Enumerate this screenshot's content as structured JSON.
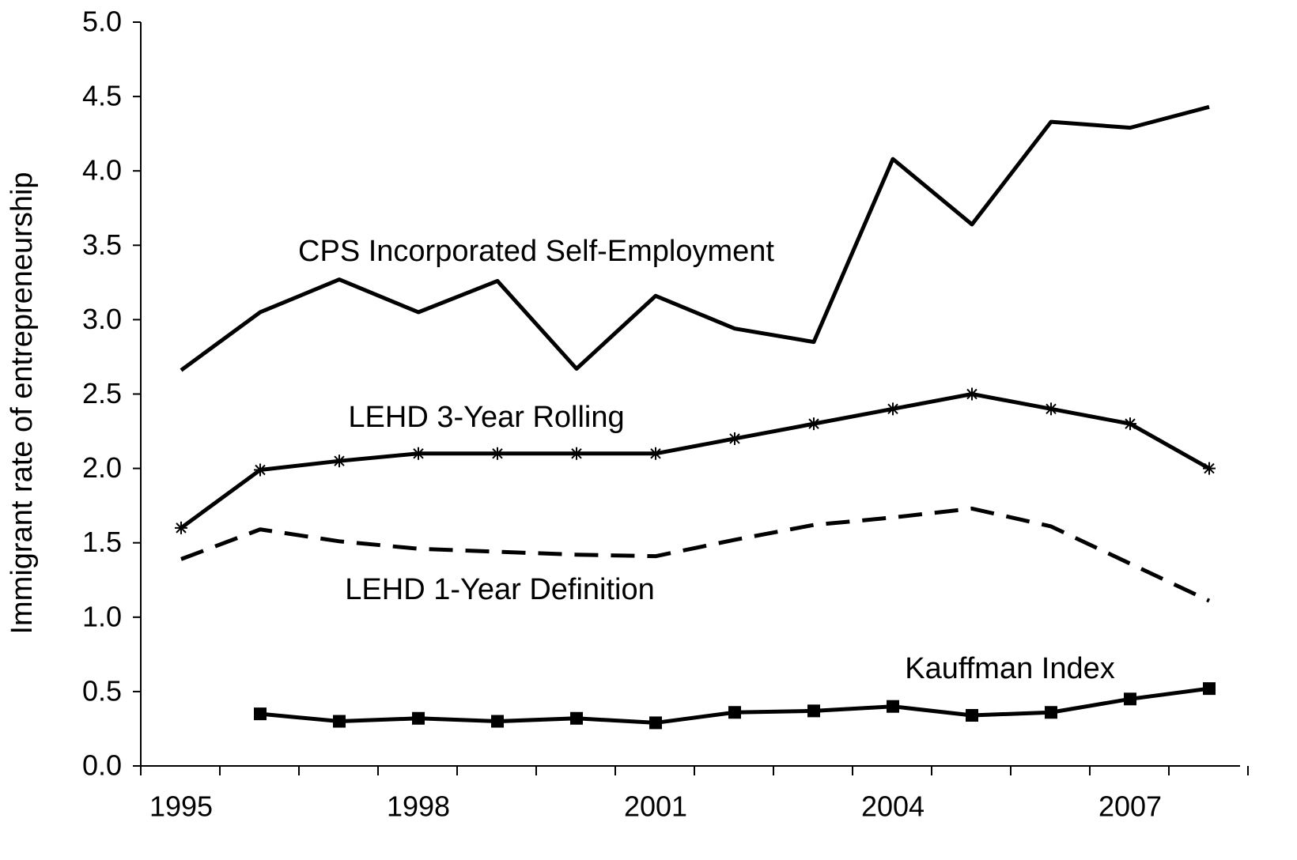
{
  "chart_data": {
    "type": "line",
    "y_label": "Immigrant rate of entrepreneurship",
    "categories": [
      "1995",
      null,
      null,
      "1998",
      null,
      null,
      "2001",
      null,
      null,
      "2004",
      null,
      null,
      "2007",
      null
    ],
    "ylim": [
      0,
      5
    ],
    "yticks": [
      {
        "value": 0,
        "label": "0.0"
      },
      0.5,
      {
        "value": 1,
        "label": "1.0"
      },
      1.5,
      {
        "value": 2,
        "label": "2.0"
      },
      2.5,
      {
        "value": 3,
        "label": "3.0"
      },
      3.5,
      {
        "value": 4,
        "label": "4.0"
      },
      4.5,
      {
        "value": 5,
        "label": "5.0"
      }
    ],
    "grid": false,
    "series": [
      {
        "name": "CPS Incorporated Self-Employment",
        "color": "#000000",
        "marker": "none",
        "dashed": false,
        "values": [
          2.66,
          3.05,
          3.27,
          3.05,
          3.26,
          2.67,
          3.16,
          2.94,
          2.85,
          4.08,
          3.64,
          4.33,
          4.29,
          4.43
        ]
      },
      {
        "name": "LEHD 3-Year Rolling",
        "color": "#000000",
        "marker": "asterisk",
        "dashed": false,
        "values": [
          1.6,
          1.99,
          2.05,
          2.1,
          2.1,
          2.1,
          2.1,
          2.2,
          2.3,
          2.4,
          2.5,
          2.4,
          2.3,
          2.0
        ]
      },
      {
        "name": "LEHD 1-Year Definition",
        "color": "#000000",
        "marker": "none",
        "dashed": true,
        "values": [
          1.39,
          1.59,
          1.51,
          1.46,
          1.44,
          1.42,
          1.41,
          1.52,
          1.62,
          1.67,
          1.73,
          1.61,
          1.36,
          1.11
        ]
      },
      {
        "name": "Kauffman Index",
        "color": "#000000",
        "marker": "square",
        "dashed": false,
        "values": [
          null,
          0.35,
          0.3,
          0.32,
          0.3,
          0.32,
          0.29,
          0.36,
          0.37,
          0.4,
          0.34,
          0.36,
          0.45,
          0.52
        ]
      }
    ]
  }
}
